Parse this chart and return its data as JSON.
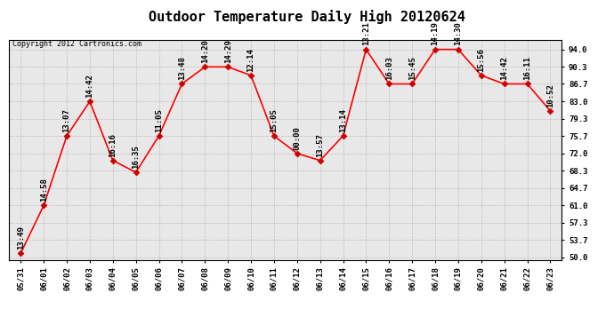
{
  "title": "Outdoor Temperature Daily High 20120624",
  "copyright_text": "Copyright 2012 Cartronics.com",
  "x_labels": [
    "05/31",
    "06/01",
    "06/02",
    "06/03",
    "06/04",
    "06/05",
    "06/06",
    "06/07",
    "06/08",
    "06/09",
    "06/10",
    "06/11",
    "06/12",
    "06/13",
    "06/14",
    "06/15",
    "06/16",
    "06/17",
    "06/18",
    "06/19",
    "06/20",
    "06/21",
    "06/22",
    "06/23"
  ],
  "y_values": [
    50.9,
    61.0,
    75.7,
    83.0,
    70.5,
    68.0,
    75.7,
    86.7,
    90.3,
    90.3,
    88.5,
    75.7,
    72.0,
    70.5,
    75.7,
    94.0,
    86.7,
    86.7,
    94.0,
    94.0,
    88.5,
    86.7,
    86.7,
    81.0
  ],
  "point_labels": [
    "13:49",
    "14:58",
    "13:07",
    "14:42",
    "16:16",
    "16:35",
    "11:05",
    "13:48",
    "14:20",
    "14:29",
    "12:14",
    "15:05",
    "00:00",
    "13:57",
    "13:14",
    "13:21",
    "16:03",
    "15:45",
    "14:19",
    "14:30",
    "15:56",
    "14:42",
    "16:11",
    "10:52"
  ],
  "y_min": 50.0,
  "y_max": 94.0,
  "y_ticks": [
    50.0,
    53.7,
    57.3,
    61.0,
    64.7,
    68.3,
    72.0,
    75.7,
    79.3,
    83.0,
    86.7,
    90.3,
    94.0
  ],
  "line_color": "#ff0000",
  "marker_color": "#cc0000",
  "bg_color": "#ffffff",
  "plot_bg_color": "#e8e8e8",
  "grid_color": "#bbbbbb",
  "title_fontsize": 11,
  "label_fontsize": 6.5,
  "annot_fontsize": 6.5,
  "copyright_fontsize": 6.0
}
